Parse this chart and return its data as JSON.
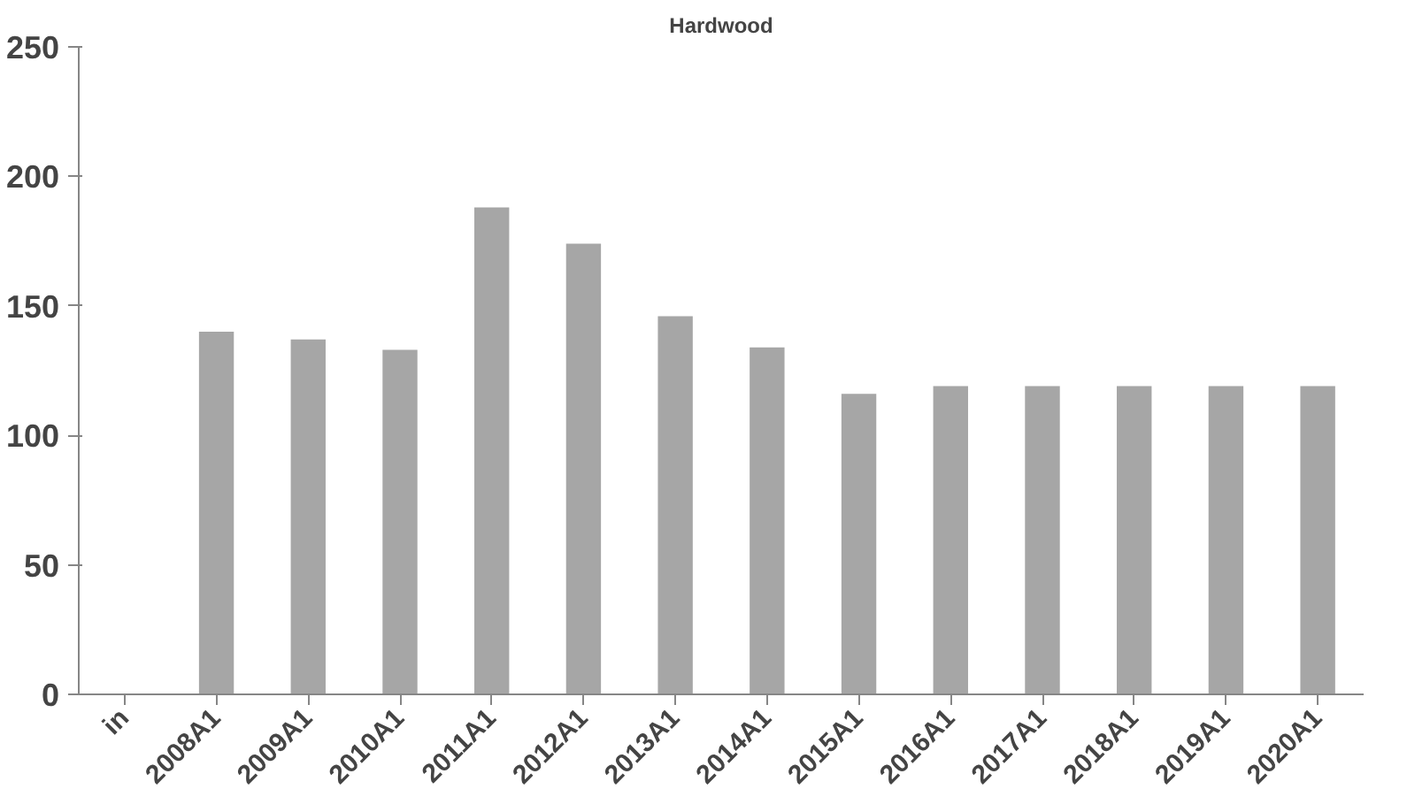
{
  "chart_data": {
    "type": "bar",
    "title": "Hardwood",
    "categories": [
      "in",
      "2008A1",
      "2009A1",
      "2010A1",
      "2011A1",
      "2012A1",
      "2013A1",
      "2014A1",
      "2015A1",
      "2016A1",
      "2017A1",
      "2018A1",
      "2019A1",
      "2020A1"
    ],
    "values": [
      null,
      140,
      137,
      133,
      188,
      174,
      146,
      134,
      116,
      119,
      119,
      119,
      119,
      119
    ],
    "color": "#a6a6a6",
    "ylim": [
      0,
      250
    ],
    "yticks": [
      0,
      50,
      100,
      150,
      200,
      250
    ],
    "grid": false
  }
}
